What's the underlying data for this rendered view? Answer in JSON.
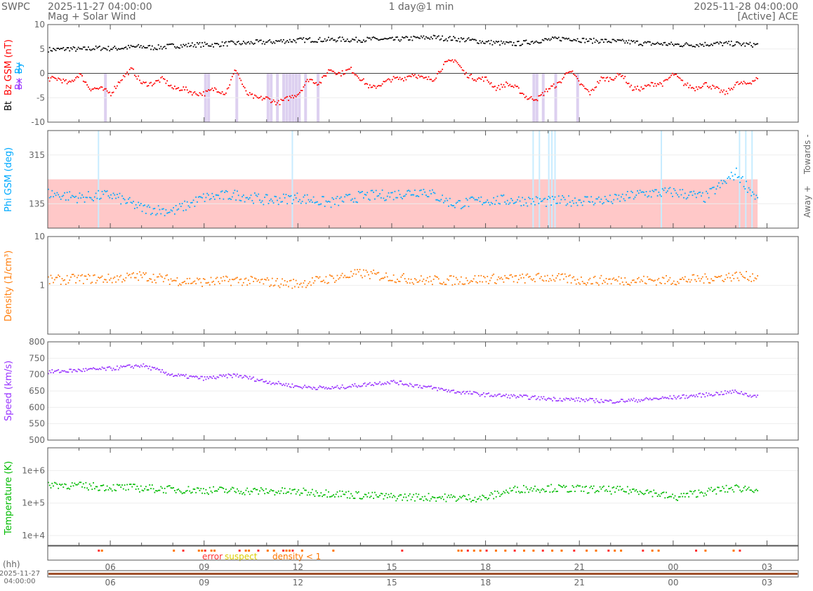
{
  "header": {
    "org": "SWPC",
    "start": "2025-11-27 04:00:00",
    "subtitle": "Mag + Solar Wind",
    "span": "1 day@1 min",
    "end": "2025-11-28 04:00:00",
    "source": "[Active] ACE"
  },
  "chart_data": [
    {
      "type": "scatter",
      "name": "mag",
      "ylabel_parts": [
        "Bt",
        "Bz GSM (nT)",
        "Bx",
        "By"
      ],
      "ylim": [
        -10,
        10
      ],
      "yticks": [
        "10",
        "5",
        "0",
        "-5",
        "-10"
      ],
      "x_step_hours": 0.3333,
      "series": [
        {
          "name": "Bt",
          "color": "#000000",
          "values": [
            5,
            5,
            5.2,
            5,
            5.2,
            5.3,
            5.2,
            5.3,
            5.5,
            5.6,
            5.4,
            5.5,
            5.8,
            5.8,
            6,
            6,
            6,
            6.2,
            6.3,
            6.3,
            6.5,
            6.5,
            6.7,
            6.8,
            6.9,
            7,
            7,
            7,
            7.1,
            7,
            7,
            7.1,
            7.1,
            7,
            7.2,
            7.3,
            7.4,
            7.5,
            7.3,
            7.2,
            7,
            6.8,
            6.5,
            6.4,
            6.2,
            6.2,
            6.5,
            6.8,
            7,
            7.2,
            7.3,
            7,
            6.8,
            6.8,
            6.7,
            6.6,
            6.5,
            6.3,
            6.2,
            6.2,
            6,
            6,
            6,
            6.1,
            6.2,
            6.2,
            6.2,
            6,
            6
          ]
        },
        {
          "name": "Bz GSM",
          "color": "#ff0000",
          "values": [
            -1,
            -1,
            -2,
            0,
            -3,
            -3,
            -4,
            -1,
            1,
            -2,
            -2,
            -1,
            -3,
            -3,
            -4,
            -4,
            -3,
            -4,
            1,
            -4,
            -5,
            -5,
            -6,
            -5,
            -4,
            -1,
            -2,
            1,
            0,
            1,
            -1,
            -3,
            -2,
            -1,
            -1,
            0,
            -1,
            -1,
            2,
            3,
            0,
            -1,
            -1,
            -3,
            -2,
            -3,
            -5,
            -5,
            -3,
            -2,
            1,
            -2,
            -4,
            -1,
            -1,
            0,
            -3,
            -3,
            -2,
            -2,
            0,
            -2,
            -3,
            -2,
            -3,
            -4,
            -2,
            -2,
            -1
          ]
        }
      ],
      "shading_hours": [
        1.8,
        5.0,
        5.1,
        6.0,
        7.0,
        7.1,
        7.3,
        7.5,
        7.6,
        7.7,
        7.8,
        7.9,
        8.0,
        8.2,
        8.6,
        15.5,
        15.6,
        15.8,
        16.2,
        16.9
      ]
    },
    {
      "type": "scatter",
      "name": "phi",
      "ylabel": "Phi GSM (deg)",
      "ylim": [
        45,
        405
      ],
      "yticks": [
        "315",
        "135"
      ],
      "right_labels": [
        "Towards -",
        "Away +"
      ],
      "away_band": [
        45,
        225
      ],
      "x_step_hours": 1,
      "series": [
        {
          "name": "Phi",
          "color": "#00aaff",
          "values": [
            175,
            160,
            170,
            120,
            110,
            160,
            170,
            150,
            160,
            140,
            165,
            170,
            185,
            135,
            150,
            150,
            145,
            150,
            150,
            175,
            180,
            160,
            250,
            110,
            125,
            175,
            195,
            160,
            185,
            200,
            115
          ]
        }
      ],
      "spike_hours": [
        1.6,
        7.8,
        15.5,
        15.7,
        16.0,
        16.1,
        16.2,
        19.6,
        22.1,
        22.3,
        22.5
      ]
    },
    {
      "type": "scatter",
      "name": "density",
      "ylabel": "Density (1/cm³)",
      "scale": "log",
      "ylim": [
        0.1,
        10
      ],
      "yticks": [
        "10",
        "1"
      ],
      "x_step_hours": 1,
      "series": [
        {
          "name": "Density",
          "color": "#ff7f0e",
          "values": [
            1.3,
            1.4,
            1.4,
            1.6,
            1.3,
            1.2,
            1.3,
            1.2,
            1.1,
            1.4,
            1.8,
            1.5,
            1.3,
            1.3,
            1.4,
            1.4,
            1.5,
            1.3,
            1.3,
            1.3,
            1.3,
            1.4,
            1.6,
            1.5,
            1.4,
            1.3,
            1.5,
            1.6,
            1.4,
            1.4,
            1.6
          ]
        }
      ]
    },
    {
      "type": "scatter",
      "name": "speed",
      "ylabel": "Speed (km/s)",
      "ylim": [
        500,
        800
      ],
      "yticks": [
        "800",
        "750",
        "700",
        "650",
        "600",
        "550",
        "500"
      ],
      "x_step_hours": 1,
      "series": [
        {
          "name": "Speed",
          "color": "#9933ff",
          "values": [
            710,
            715,
            720,
            730,
            700,
            690,
            700,
            680,
            665,
            660,
            670,
            680,
            665,
            650,
            640,
            635,
            628,
            625,
            620,
            625,
            632,
            640,
            650,
            625,
            640,
            640,
            645,
            650,
            650,
            652,
            660
          ]
        }
      ]
    },
    {
      "type": "scatter",
      "name": "temperature",
      "ylabel": "Temperature (K)",
      "scale": "log",
      "ylim": [
        5000,
        5000000
      ],
      "yticks": [
        "1e+6",
        "1e+5",
        "1e+4"
      ],
      "x_step_hours": 1,
      "series": [
        {
          "name": "Temperature",
          "color": "#00bb00",
          "values": [
            400000,
            350000,
            320000,
            300000,
            270000,
            260000,
            250000,
            240000,
            230000,
            210000,
            180000,
            160000,
            160000,
            150000,
            150000,
            280000,
            300000,
            280000,
            260000,
            250000,
            150000,
            230000,
            300000,
            280000,
            260000,
            240000,
            230000,
            200000,
            190000,
            200000,
            190000
          ]
        }
      ]
    }
  ],
  "quality": {
    "labels": {
      "error": "error",
      "suspect": "suspect",
      "density": "density < 1"
    },
    "colors": {
      "error": "#ff3333",
      "suspect": "#ddcc00",
      "density": "#ff7700"
    },
    "flag_hours": [
      1.6,
      1.7,
      4.0,
      4.3,
      4.8,
      4.9,
      5.0,
      5.2,
      5.3,
      6.1,
      6.3,
      6.4,
      6.7,
      7.0,
      7.2,
      7.5,
      7.6,
      7.7,
      7.8,
      8.1,
      9.1,
      11.3,
      13.1,
      13.2,
      13.4,
      13.6,
      13.8,
      14.0,
      14.3,
      14.6,
      14.9,
      15.2,
      15.5,
      15.8,
      16.1,
      16.4,
      16.8,
      17.2,
      17.5,
      17.9,
      18.1,
      18.3,
      19.0,
      19.3,
      19.5,
      20.7,
      21.0,
      21.9,
      22.1
    ]
  },
  "xaxis": {
    "unit": "(hh)",
    "ticks": [
      "06",
      "09",
      "12",
      "15",
      "18",
      "21",
      "00",
      "03"
    ],
    "tick_hours": [
      2,
      5,
      8,
      11,
      14,
      17,
      20,
      23
    ],
    "start_date": "2025-11-27",
    "start_time": "04:00:00"
  }
}
